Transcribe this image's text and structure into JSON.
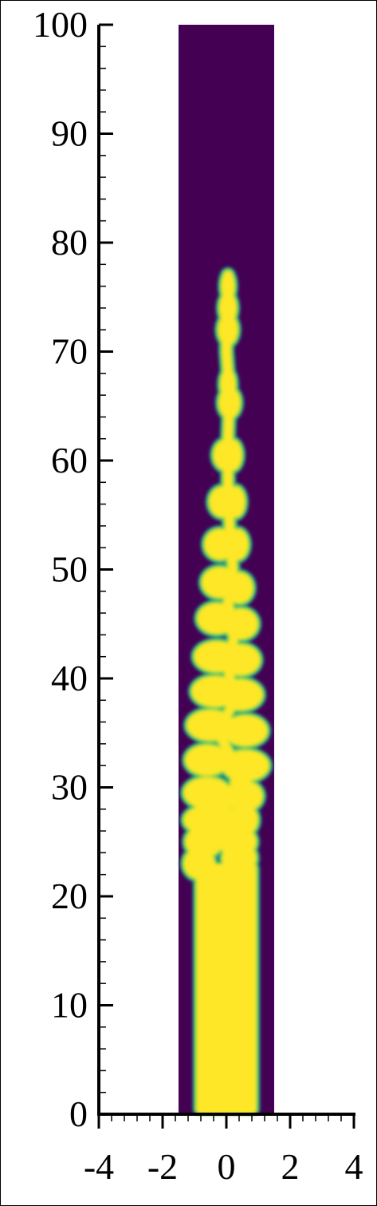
{
  "chart_data": {
    "type": "heatmap",
    "title": "",
    "xlabel": "",
    "ylabel": "",
    "xlim": [
      -4,
      4
    ],
    "ylim": [
      0,
      100
    ],
    "domain_x": [
      -1.5,
      1.5
    ],
    "colors": {
      "background": "#440154",
      "fluid": "#fde725",
      "interface": "#21918c",
      "mid": "#5ec962"
    },
    "x_ticks": [
      "-4",
      "-2",
      "0",
      "2",
      "4"
    ],
    "y_ticks": [
      "0",
      "10",
      "20",
      "30",
      "40",
      "50",
      "60",
      "70",
      "80",
      "90",
      "100"
    ],
    "jet_profile": {
      "description_units": "z in axis units, half-width r in axis units",
      "base_half_width": 0.95,
      "smooth_until": 22,
      "tip": 77,
      "center_offsets": [
        {
          "z": 22,
          "x": 0.0
        },
        {
          "z": 24.5,
          "x": 0.35
        },
        {
          "z": 27,
          "x": -0.3
        },
        {
          "z": 29.5,
          "x": 0.25
        },
        {
          "z": 32,
          "x": 0.3
        },
        {
          "z": 35,
          "x": -0.25
        },
        {
          "z": 38,
          "x": 0.25
        },
        {
          "z": 41,
          "x": 0.05
        },
        {
          "z": 44,
          "x": 0.25
        },
        {
          "z": 47,
          "x": 0.05
        },
        {
          "z": 50,
          "x": 0.2
        },
        {
          "z": 54,
          "x": 0.1
        },
        {
          "z": 58,
          "x": 0.05
        },
        {
          "z": 62,
          "x": 0.05
        },
        {
          "z": 66,
          "x": 0.1
        },
        {
          "z": 70,
          "x": 0.0
        },
        {
          "z": 77,
          "x": 0.05
        }
      ],
      "bulges": [
        {
          "z": 23,
          "x": -0.85,
          "r": 0.5
        },
        {
          "z": 23.5,
          "x": 0.4,
          "r": 0.55
        },
        {
          "z": 25,
          "x": -0.7,
          "r": 0.6
        },
        {
          "z": 25,
          "x": 0.35,
          "r": 0.6
        },
        {
          "z": 27,
          "x": -0.45,
          "r": 0.9
        },
        {
          "z": 27,
          "x": 0.55,
          "r": 0.45
        },
        {
          "z": 29.5,
          "x": -0.6,
          "r": 0.75
        },
        {
          "z": 29.2,
          "x": 0.55,
          "r": 0.6
        },
        {
          "z": 32.5,
          "x": -0.6,
          "r": 0.7
        },
        {
          "z": 32,
          "x": 0.6,
          "r": 0.75
        },
        {
          "z": 35.7,
          "x": -0.5,
          "r": 0.75
        },
        {
          "z": 35.2,
          "x": 0.6,
          "r": 0.7
        },
        {
          "z": 38.8,
          "x": -0.35,
          "r": 0.75
        },
        {
          "z": 38.5,
          "x": 0.45,
          "r": 0.7
        },
        {
          "z": 42,
          "x": -0.3,
          "r": 0.72
        },
        {
          "z": 41.7,
          "x": 0.45,
          "r": 0.62
        },
        {
          "z": 45.5,
          "x": -0.3,
          "r": 0.62
        },
        {
          "z": 45,
          "x": 0.45,
          "r": 0.55
        },
        {
          "z": 48.8,
          "x": -0.2,
          "r": 0.58
        },
        {
          "z": 48.3,
          "x": 0.4,
          "r": 0.45
        },
        {
          "z": 52.3,
          "x": -0.2,
          "r": 0.5
        },
        {
          "z": 52.3,
          "x": 0.35,
          "r": 0.35
        },
        {
          "z": 56.2,
          "x": -0.1,
          "r": 0.45
        },
        {
          "z": 56.2,
          "x": 0.3,
          "r": 0.3
        },
        {
          "z": 60.5,
          "x": 0.0,
          "r": 0.42
        },
        {
          "z": 60.5,
          "x": 0.2,
          "r": 0.3
        },
        {
          "z": 65.3,
          "x": 0.1,
          "r": 0.35
        },
        {
          "z": 67,
          "x": 0.05,
          "r": 0.25
        },
        {
          "z": 72,
          "x": 0.05,
          "r": 0.32
        },
        {
          "z": 74,
          "x": 0.05,
          "r": 0.28
        },
        {
          "z": 76,
          "x": 0.05,
          "r": 0.22
        }
      ],
      "necks": [
        {
          "z": 63,
          "x": 0.05,
          "r": 0.12
        },
        {
          "z": 68.5,
          "x": 0.0,
          "r": 0.1
        },
        {
          "z": 70,
          "x": 0.05,
          "r": 0.1
        }
      ]
    }
  }
}
